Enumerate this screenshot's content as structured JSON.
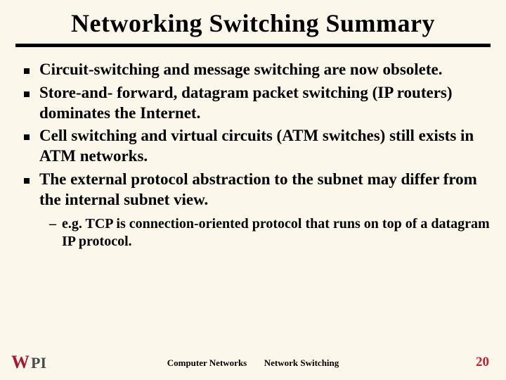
{
  "title": "Networking Switching Summary",
  "bullets": [
    "Circuit-switching and message switching are now obsolete.",
    "Store-and- forward, datagram packet switching (IP routers) dominates the Internet.",
    "Cell switching and virtual circuits (ATM switches) still exists in ATM networks.",
    "The external protocol abstraction to the subnet may differ from the internal subnet view."
  ],
  "subbullets": [
    "e.g. TCP is connection-oriented protocol that runs on top of a datagram IP protocol."
  ],
  "footer": {
    "left1": "Computer Networks",
    "left2": "Network Switching",
    "page": "20"
  },
  "logo": {
    "w": "W",
    "pi": "PI"
  },
  "colors": {
    "background": "#fbf7ea",
    "title": "#000000",
    "rule": "#000000",
    "bullet_text": "#000000",
    "page_num": "#c42030",
    "logo_w": "#a6192e",
    "logo_pi": "#4a4a4a"
  }
}
